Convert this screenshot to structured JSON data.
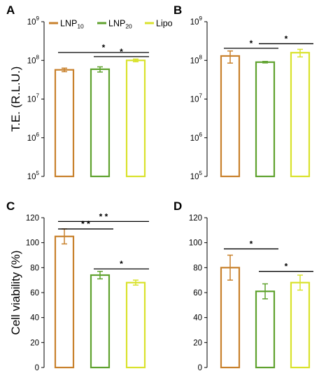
{
  "colors": {
    "LNP10": "#c8812c",
    "LNP20": "#5fa22e",
    "Lipo": "#d9e22c",
    "axis": "#000000"
  },
  "legend": {
    "items": [
      {
        "base": "LNP",
        "sub": "10",
        "color": "#c8812c"
      },
      {
        "base": "LNP",
        "sub": "20",
        "color": "#5fa22e"
      },
      {
        "base": "Lipo",
        "sub": "",
        "color": "#d9e22c"
      }
    ]
  },
  "chart_data": [
    {
      "panel": "A",
      "type": "bar",
      "scale": "log",
      "ylabel": "T.E. (R.L.U.)",
      "ylim": [
        100000,
        1000000000
      ],
      "yticks": [
        {
          "base": "10",
          "exp": "5",
          "value": 100000
        },
        {
          "base": "10",
          "exp": "6",
          "value": 1000000
        },
        {
          "base": "10",
          "exp": "7",
          "value": 10000000
        },
        {
          "base": "10",
          "exp": "8",
          "value": 100000000
        },
        {
          "base": "10",
          "exp": "9",
          "value": 1000000000
        }
      ],
      "categories": [
        "LNP10",
        "LNP20",
        "Lipo"
      ],
      "values": [
        57000000,
        59000000,
        100000000
      ],
      "errors": [
        6000000,
        9000000,
        8000000
      ],
      "significance": [
        {
          "from": 0,
          "to": 2,
          "label": "*",
          "y": 160000000
        },
        {
          "from": 1,
          "to": 2,
          "label": "*",
          "y": 125000000
        }
      ]
    },
    {
      "panel": "B",
      "type": "bar",
      "scale": "log",
      "ylabel": "",
      "ylim": [
        100000,
        1000000000
      ],
      "yticks": [
        {
          "base": "10",
          "exp": "5",
          "value": 100000
        },
        {
          "base": "10",
          "exp": "6",
          "value": 1000000
        },
        {
          "base": "10",
          "exp": "7",
          "value": 10000000
        },
        {
          "base": "10",
          "exp": "8",
          "value": 100000000
        },
        {
          "base": "10",
          "exp": "9",
          "value": 1000000000
        }
      ],
      "categories": [
        "LNP10",
        "LNP20",
        "Lipo"
      ],
      "values": [
        130000000,
        90000000,
        158000000
      ],
      "errors": [
        45000000,
        4000000,
        35000000
      ],
      "significance": [
        {
          "from": 0,
          "to": 1,
          "label": "*",
          "y": 205000000
        },
        {
          "from": 1,
          "to": 2,
          "label": "*",
          "y": 270000000
        }
      ]
    },
    {
      "panel": "C",
      "type": "bar",
      "scale": "linear",
      "ylabel": "Cell viability (%)",
      "ylim": [
        0,
        120
      ],
      "yticks": [
        {
          "base": "0",
          "exp": "",
          "value": 0
        },
        {
          "base": "20",
          "exp": "",
          "value": 20
        },
        {
          "base": "40",
          "exp": "",
          "value": 40
        },
        {
          "base": "60",
          "exp": "",
          "value": 60
        },
        {
          "base": "80",
          "exp": "",
          "value": 80
        },
        {
          "base": "100",
          "exp": "",
          "value": 100
        },
        {
          "base": "120",
          "exp": "",
          "value": 120
        }
      ],
      "categories": [
        "LNP10",
        "LNP20",
        "Lipo"
      ],
      "values": [
        105,
        74,
        68
      ],
      "errors": [
        6,
        3,
        2
      ],
      "significance": [
        {
          "from": 0,
          "to": 2,
          "label": "* *",
          "y": 117
        },
        {
          "from": 0,
          "to": 1,
          "label": "* *",
          "y": 111
        },
        {
          "from": 1,
          "to": 2,
          "label": "*",
          "y": 79
        }
      ]
    },
    {
      "panel": "D",
      "type": "bar",
      "scale": "linear",
      "ylabel": "",
      "ylim": [
        0,
        120
      ],
      "yticks": [
        {
          "base": "0",
          "exp": "",
          "value": 0
        },
        {
          "base": "20",
          "exp": "",
          "value": 20
        },
        {
          "base": "40",
          "exp": "",
          "value": 40
        },
        {
          "base": "60",
          "exp": "",
          "value": 60
        },
        {
          "base": "80",
          "exp": "",
          "value": 80
        },
        {
          "base": "100",
          "exp": "",
          "value": 100
        },
        {
          "base": "120",
          "exp": "",
          "value": 120
        }
      ],
      "categories": [
        "LNP10",
        "LNP20",
        "Lipo"
      ],
      "values": [
        80,
        61,
        68
      ],
      "errors": [
        10,
        6,
        6
      ],
      "significance": [
        {
          "from": 0,
          "to": 1,
          "label": "*",
          "y": 95
        },
        {
          "from": 1,
          "to": 2,
          "label": "*",
          "y": 77
        }
      ]
    }
  ]
}
